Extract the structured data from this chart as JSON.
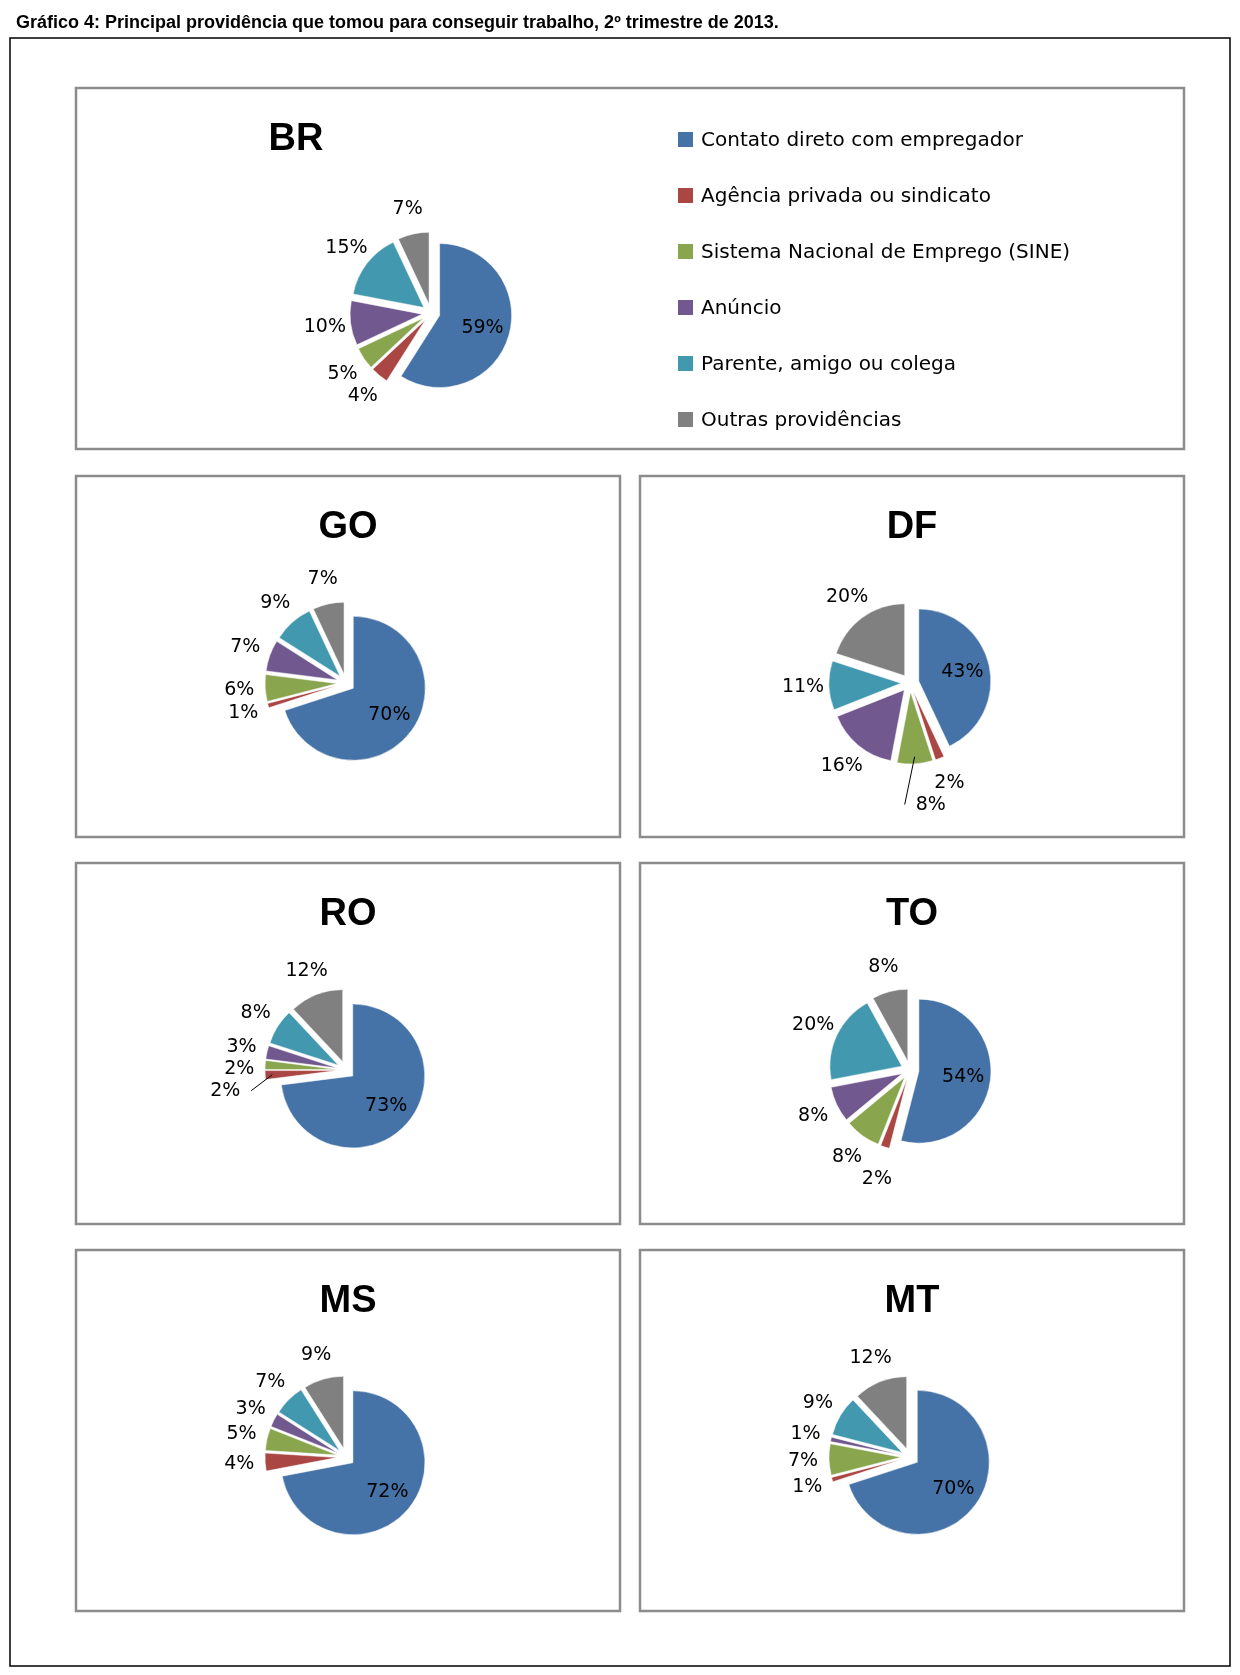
{
  "chart_data": [
    {
      "type": "pie",
      "title": "BR",
      "annotations": [
        "Gráfico 4: Principal providência que tomou para conseguir trabalho, 2º trimestre de 2013."
      ],
      "legend": "right",
      "categories": [
        "Contato direto com empregador",
        "Agência privada ou sindicato",
        "Sistema Nacional de Emprego (SINE)",
        "Anúncio",
        "Parente, amigo ou colega",
        "Outras providências"
      ],
      "values": [
        59,
        4,
        5,
        10,
        15,
        7
      ],
      "colors": [
        "#4572a7",
        "#aa4643",
        "#89a54e",
        "#71588f",
        "#4198af",
        "#808080"
      ],
      "value_labels": [
        "59%",
        "4%",
        "5%",
        "10%",
        "15%",
        "7%"
      ]
    },
    {
      "type": "pie",
      "title": "GO",
      "categories": [
        null,
        null,
        null,
        null,
        null,
        null
      ],
      "values": [
        70,
        1,
        6,
        7,
        9,
        7
      ],
      "colors": [
        "#4572a7",
        "#aa4643",
        "#89a54e",
        "#71588f",
        "#4198af",
        "#808080"
      ],
      "value_labels": [
        "70%",
        "1%",
        "6%",
        "7%",
        "9%",
        "7%"
      ]
    },
    {
      "type": "pie",
      "title": "DF",
      "categories": [
        null,
        null,
        null,
        null,
        null,
        null
      ],
      "values": [
        43,
        2,
        8,
        16,
        11,
        20
      ],
      "colors": [
        "#4572a7",
        "#aa4643",
        "#89a54e",
        "#71588f",
        "#4198af",
        "#808080"
      ],
      "value_labels": [
        "43%",
        "2%",
        "8%",
        "16%",
        "11%",
        "20%"
      ]
    },
    {
      "type": "pie",
      "title": "RO",
      "categories": [
        null,
        null,
        null,
        null,
        null,
        null
      ],
      "values": [
        73,
        2,
        2,
        3,
        8,
        12
      ],
      "colors": [
        "#4572a7",
        "#aa4643",
        "#89a54e",
        "#71588f",
        "#4198af",
        "#808080"
      ],
      "value_labels": [
        "73%",
        "2%",
        "2%",
        "3%",
        "8%",
        "12%"
      ]
    },
    {
      "type": "pie",
      "title": "TO",
      "categories": [
        null,
        null,
        null,
        null,
        null,
        null
      ],
      "values": [
        54,
        2,
        8,
        8,
        20,
        8
      ],
      "colors": [
        "#4572a7",
        "#aa4643",
        "#89a54e",
        "#71588f",
        "#4198af",
        "#808080"
      ],
      "value_labels": [
        "54%",
        "2%",
        "8%",
        "8%",
        "20%",
        "8%"
      ]
    },
    {
      "type": "pie",
      "title": "MS",
      "categories": [
        null,
        null,
        null,
        null,
        null,
        null
      ],
      "values": [
        72,
        4,
        5,
        3,
        7,
        9
      ],
      "colors": [
        "#4572a7",
        "#aa4643",
        "#89a54e",
        "#71588f",
        "#4198af",
        "#808080"
      ],
      "value_labels": [
        "72%",
        "4%",
        "5%",
        "3%",
        "7%",
        "9%"
      ]
    },
    {
      "type": "pie",
      "title": "MT",
      "categories": [
        null,
        null,
        null,
        null,
        null,
        null
      ],
      "values": [
        70,
        1,
        7,
        1,
        9,
        12
      ],
      "colors": [
        "#4572a7",
        "#aa4643",
        "#89a54e",
        "#71588f",
        "#4198af",
        "#808080"
      ],
      "value_labels": [
        "70%",
        "1%",
        "7%",
        "1%",
        "9%",
        "12%"
      ]
    }
  ]
}
